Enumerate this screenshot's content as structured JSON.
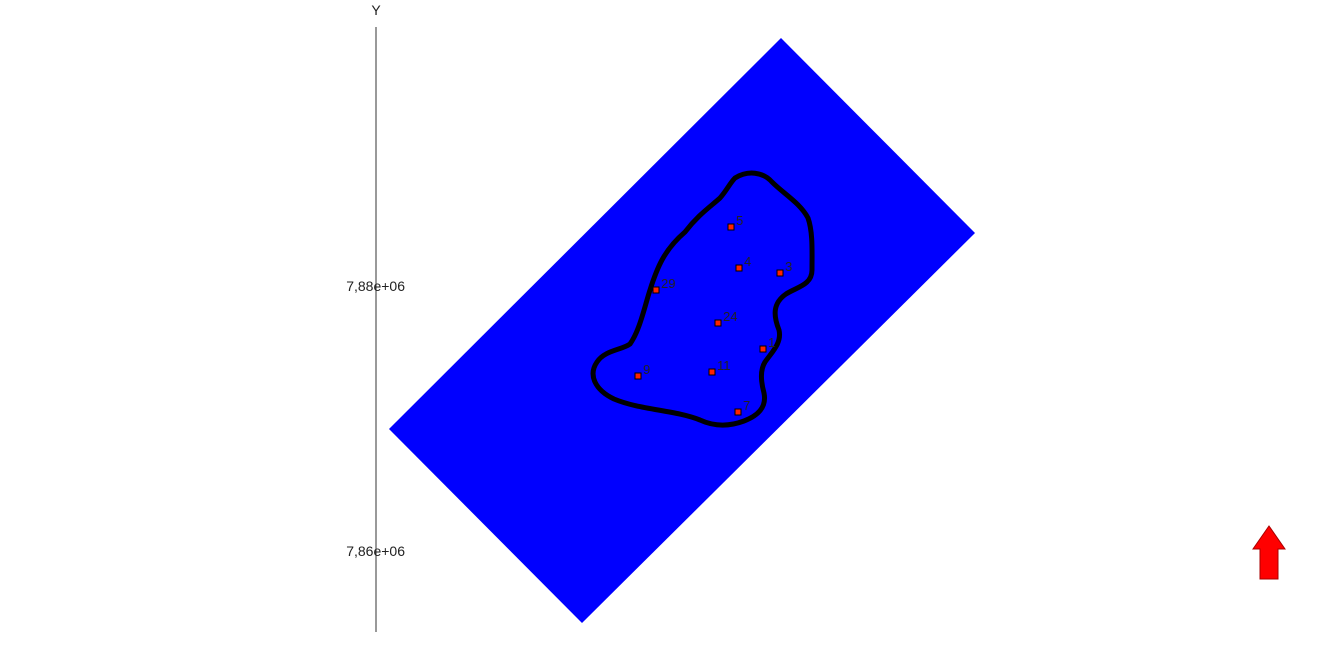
{
  "axis": {
    "y_label": "Y",
    "ticks": [
      {
        "label": "7,88e+06",
        "value": 7880000
      },
      {
        "label": "7,86e+06",
        "value": 7860000
      }
    ]
  },
  "colors": {
    "grid_block": "#0000ff",
    "boundary": "#000000",
    "well_fill": "#ff2200",
    "well_stroke": "#000000",
    "north_arrow": "#ff0000",
    "axis_line": "#333333"
  },
  "wells": [
    {
      "label": "5"
    },
    {
      "label": "4"
    },
    {
      "label": "3"
    },
    {
      "label": "29"
    },
    {
      "label": "24"
    },
    {
      "label": "1"
    },
    {
      "label": "9"
    },
    {
      "label": "11"
    },
    {
      "label": "7"
    }
  ],
  "icons": {
    "north_arrow": "north-arrow-icon"
  }
}
